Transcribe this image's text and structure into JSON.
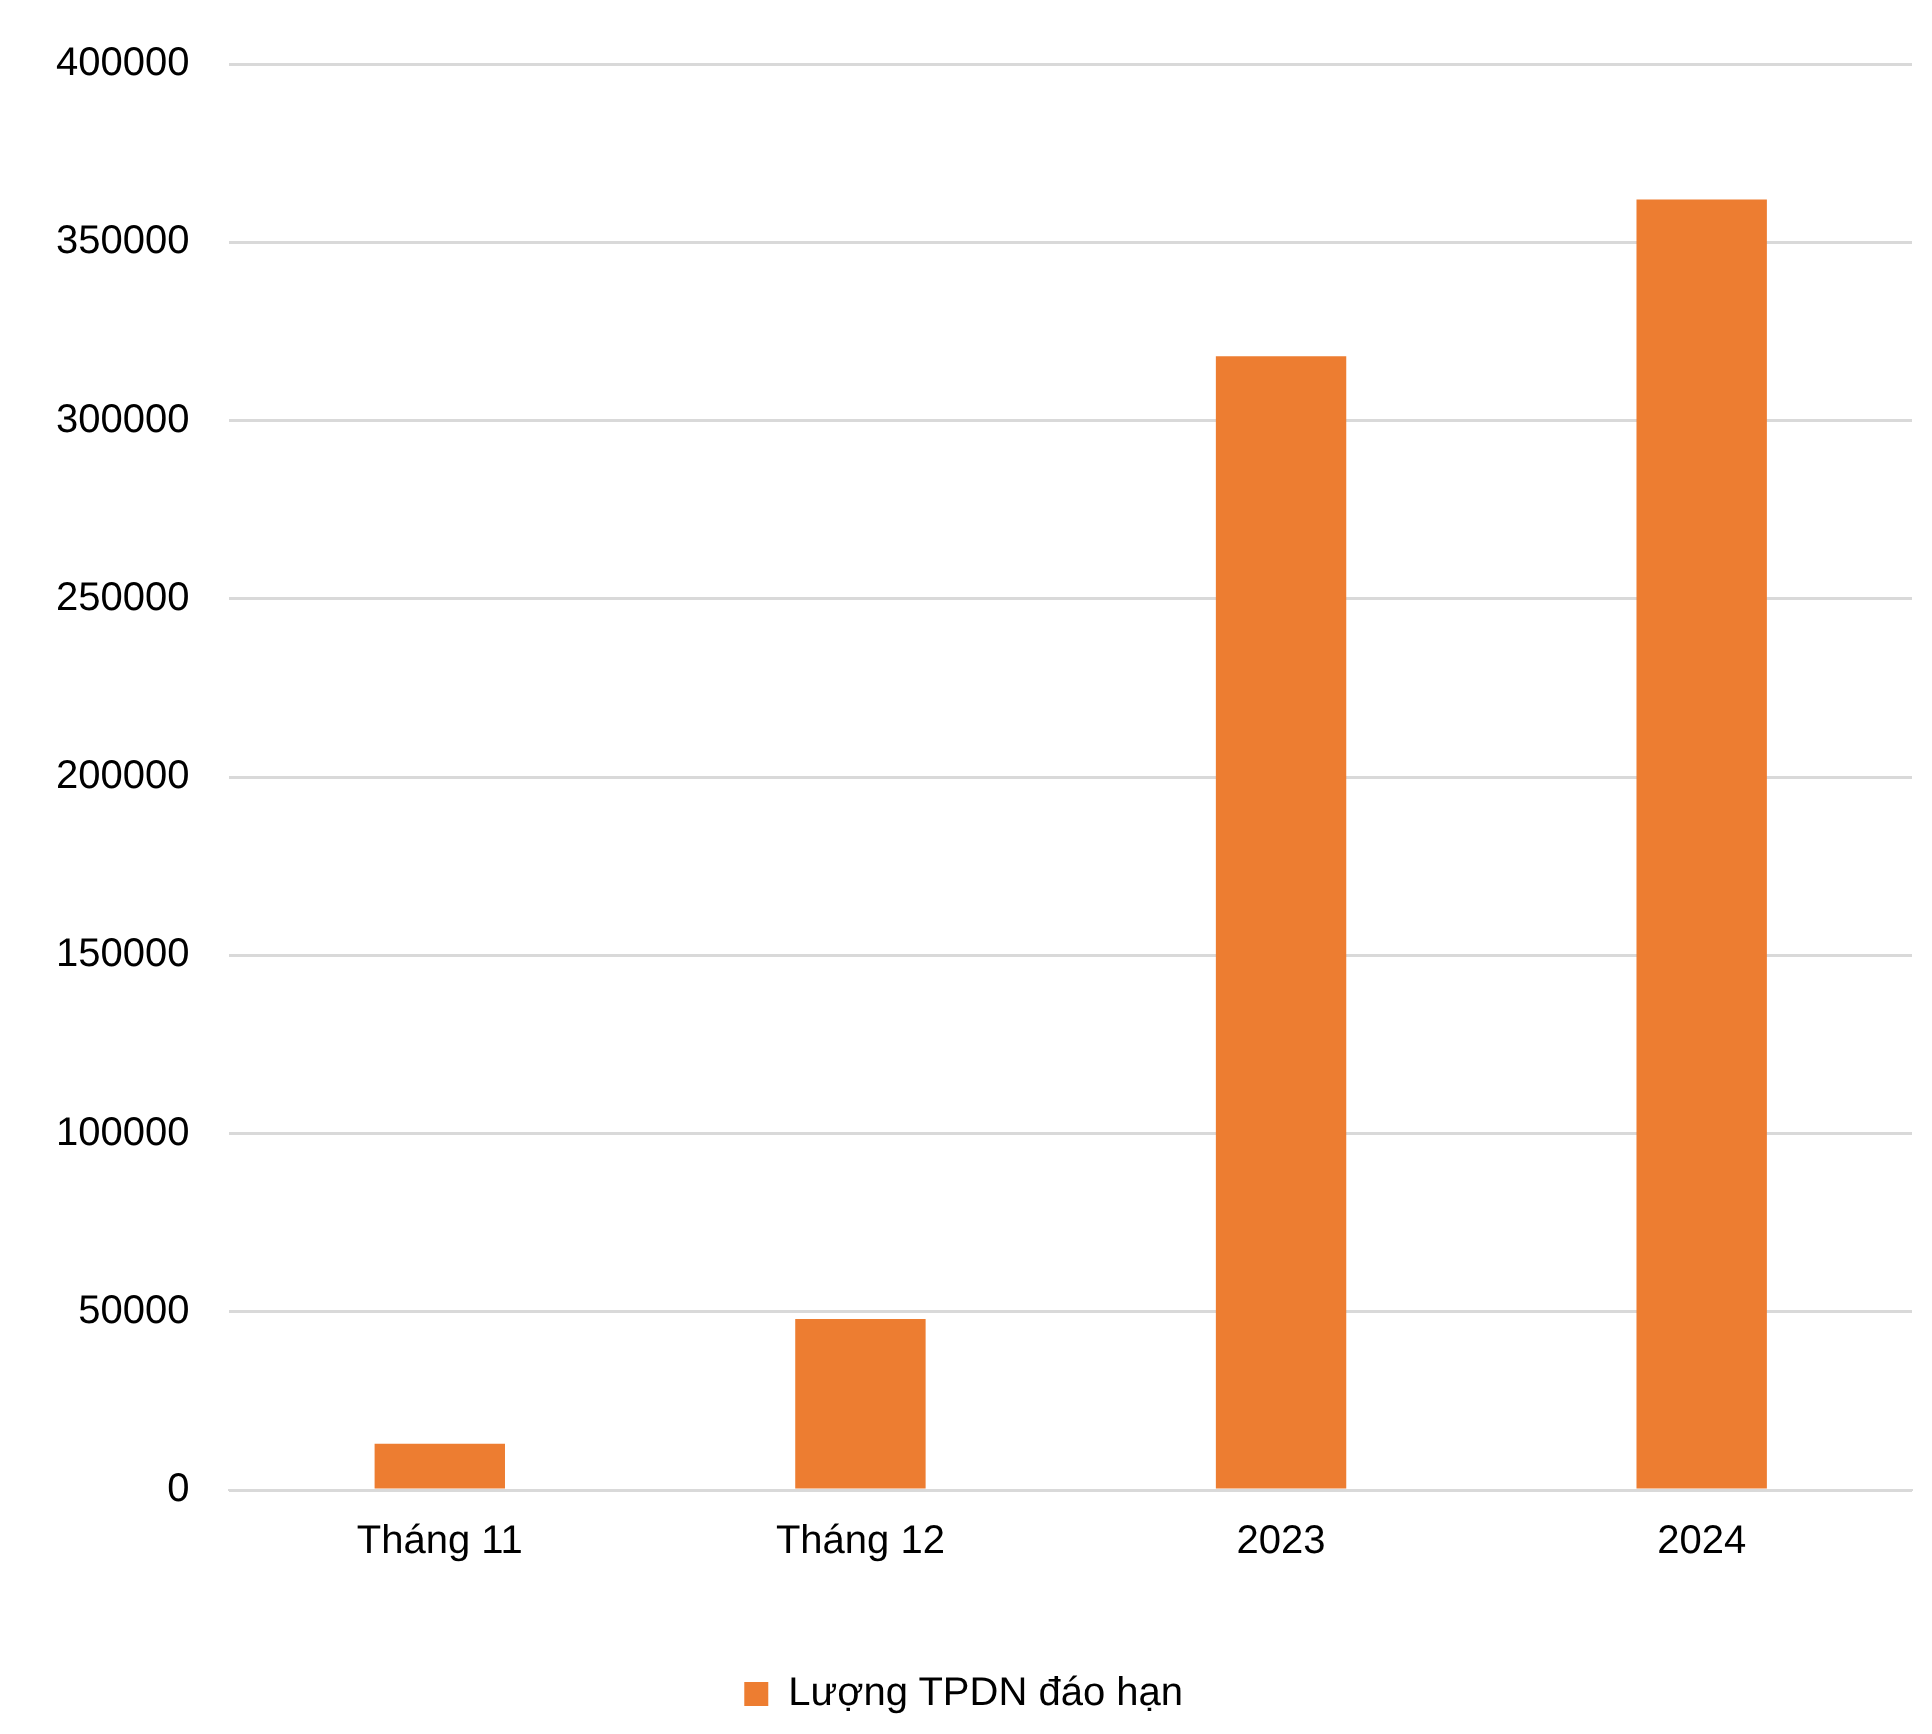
{
  "chart_data": {
    "type": "bar",
    "categories": [
      "Tháng 11",
      "Tháng 12",
      "2023",
      "2024"
    ],
    "series": [
      {
        "name": "Lượng TPDN đáo hạn",
        "color": "#ed7d31",
        "values": [
          13000,
          48000,
          318000,
          362000
        ]
      }
    ],
    "ylim": [
      0,
      400000
    ],
    "yticks": [
      0,
      50000,
      100000,
      150000,
      200000,
      250000,
      300000,
      350000,
      400000
    ],
    "grid": "y",
    "legend": "bottom"
  }
}
